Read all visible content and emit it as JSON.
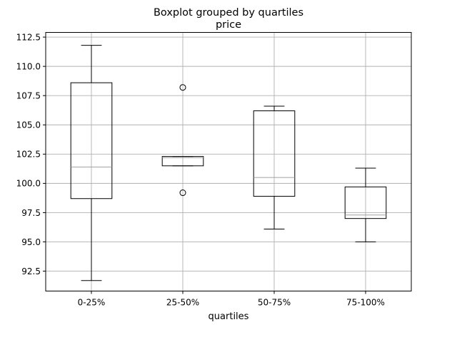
{
  "chart_data": {
    "type": "boxplot",
    "title": "Boxplot grouped by quartiles",
    "subtitle": "price",
    "xlabel": "quartiles",
    "ylabel": "",
    "grid": true,
    "ylim": [
      90.8,
      112.9
    ],
    "yticks": [
      "92.5",
      "95.0",
      "97.5",
      "100.0",
      "102.5",
      "105.0",
      "107.5",
      "110.0",
      "112.5"
    ],
    "categories": [
      "0-25%",
      "25-50%",
      "50-75%",
      "75-100%"
    ],
    "boxes": [
      {
        "category": "0-25%",
        "whisker_low": 91.7,
        "q1": 98.7,
        "median": 101.4,
        "q3": 108.6,
        "whisker_high": 111.8,
        "outliers": []
      },
      {
        "category": "25-50%",
        "whisker_low": 101.5,
        "q1": 101.5,
        "median": 102.2,
        "q3": 102.3,
        "whisker_high": 102.3,
        "outliers": [
          99.2,
          108.2
        ]
      },
      {
        "category": "50-75%",
        "whisker_low": 96.1,
        "q1": 98.9,
        "median": 100.5,
        "q3": 106.2,
        "whisker_high": 106.6,
        "outliers": []
      },
      {
        "category": "75-100%",
        "whisker_low": 95.0,
        "q1": 97.0,
        "median": 97.3,
        "q3": 99.7,
        "whisker_high": 101.3,
        "outliers": []
      }
    ],
    "colors": {
      "box": "#000000",
      "median": "#a0a0a0",
      "grid": "#b0b0b0"
    }
  }
}
